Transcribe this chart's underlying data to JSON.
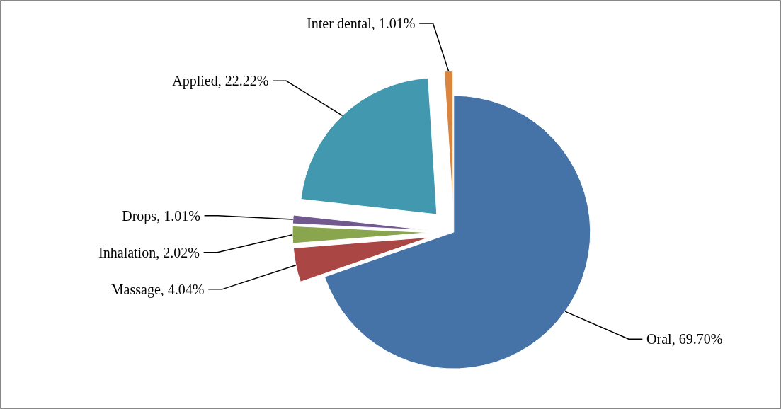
{
  "chart_data": {
    "type": "pie",
    "categories": [
      "Oral",
      "Massage",
      "Inhalation",
      "Drops",
      "Applied",
      "Inter dental"
    ],
    "values": [
      69.7,
      4.04,
      2.02,
      1.01,
      22.22,
      1.01
    ],
    "value_labels": [
      "69.70%",
      "4.04%",
      "2.02%",
      "1.01%",
      "22.22%",
      "1.01%"
    ],
    "colors": [
      "#4572a7",
      "#aa4643",
      "#89a54e",
      "#71588f",
      "#4198af",
      "#db843d"
    ],
    "legend": false
  }
}
